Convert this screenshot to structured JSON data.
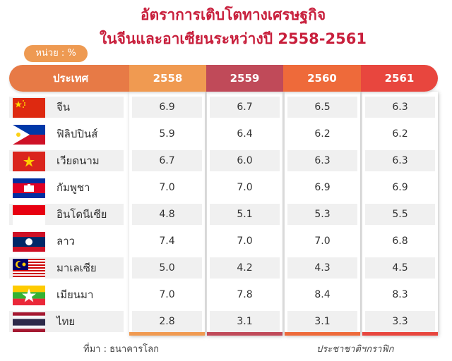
{
  "header": {
    "title_line1": "อัตราการเติบโตทางเศรษฐกิจ",
    "title_line2": "ในจีนและอาเซียนระหว่างปี 2558-2561",
    "unit": "หน่วย : %"
  },
  "table": {
    "columns": [
      "ประเทศ",
      "2558",
      "2559",
      "2560",
      "2561"
    ],
    "rows": [
      {
        "country": "จีน",
        "flag": "china-flag-icon",
        "values": [
          "6.9",
          "6.7",
          "6.5",
          "6.3"
        ]
      },
      {
        "country": "ฟิลิปปินส์",
        "flag": "philippines-flag-icon",
        "values": [
          "5.9",
          "6.4",
          "6.2",
          "6.2"
        ]
      },
      {
        "country": "เวียดนาม",
        "flag": "vietnam-flag-icon",
        "values": [
          "6.7",
          "6.0",
          "6.3",
          "6.3"
        ]
      },
      {
        "country": "กัมพูชา",
        "flag": "cambodia-flag-icon",
        "values": [
          "7.0",
          "7.0",
          "6.9",
          "6.9"
        ]
      },
      {
        "country": "อินโดนีเซีย",
        "flag": "indonesia-flag-icon",
        "values": [
          "4.8",
          "5.1",
          "5.3",
          "5.5"
        ]
      },
      {
        "country": "ลาว",
        "flag": "laos-flag-icon",
        "values": [
          "7.4",
          "7.0",
          "7.0",
          "6.8"
        ]
      },
      {
        "country": "มาเลเซีย",
        "flag": "malaysia-flag-icon",
        "values": [
          "5.0",
          "4.2",
          "4.3",
          "4.5"
        ]
      },
      {
        "country": "เมียนมา",
        "flag": "myanmar-flag-icon",
        "values": [
          "7.0",
          "7.8",
          "8.4",
          "8.3"
        ]
      },
      {
        "country": "ไทย",
        "flag": "thailand-flag-icon",
        "values": [
          "2.8",
          "3.1",
          "3.1",
          "3.3"
        ]
      }
    ]
  },
  "footer": {
    "source": "ที่มา : ธนาคารโลก",
    "credit": "ประชาชาติฯกราฟิก"
  },
  "colors": {
    "title": "#c81f3c",
    "unit_badge": "#ee9a52",
    "col_2558": "#f09a51",
    "col_2559": "#c04a59",
    "col_2560": "#ee6a3a",
    "col_2561": "#e8463e"
  }
}
